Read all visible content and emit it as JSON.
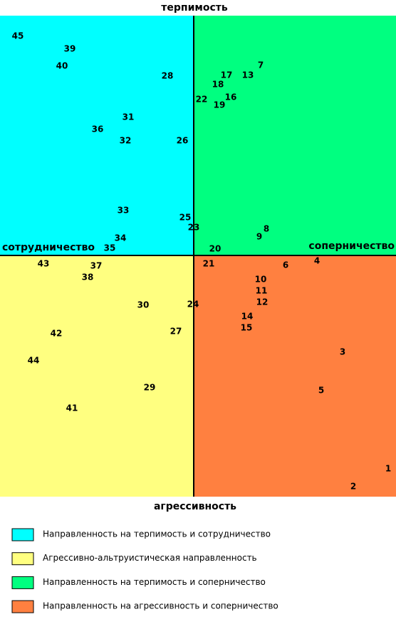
{
  "title": "терпимость",
  "left_label": "сотрудничество",
  "right_label": "соперничество",
  "bottom_label": "агрессивность",
  "points": [
    "45",
    "39",
    "40",
    "28",
    "17",
    "13",
    "7",
    "18",
    "22",
    "16",
    "19",
    "31",
    "36",
    "32",
    "26",
    "33",
    "25",
    "23",
    "8",
    "9",
    "34",
    "35",
    "20",
    "43",
    "37",
    "38",
    "21",
    "6",
    "4",
    "10",
    "11",
    "12",
    "30",
    "24",
    "14",
    "15",
    "42",
    "27",
    "44",
    "3",
    "5",
    "29",
    "41",
    "1",
    "2"
  ],
  "legend": [
    {
      "label": "Направленность на терпимость и сотрудничество",
      "color": "#00ffff"
    },
    {
      "label": "Агрессивно-альтруистическая направленность",
      "color": "#ffff80"
    },
    {
      "label": "Направленность на терпимость и соперничество",
      "color": "#00ff80"
    },
    {
      "label": "Направленность на агрессивность и соперничество",
      "color": "#ff8040"
    }
  ]
}
